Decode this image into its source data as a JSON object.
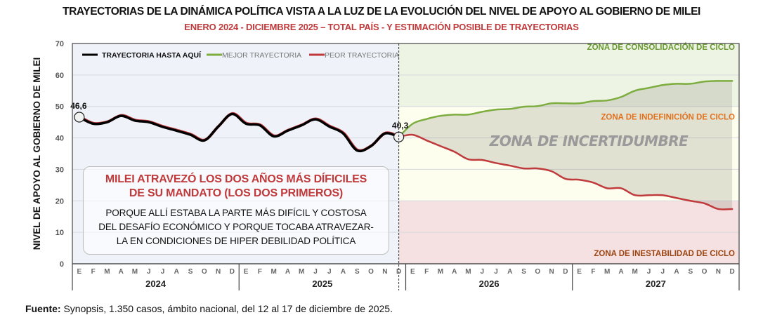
{
  "title": "TRAYECTORIAS DE LA DINÁMICA POLÍTICA VISTA A LA LUZ DE LA EVOLUCIÓN DEL NIVEL DE APOYO AL GOBIERNO DE MILEI",
  "subtitle": "ENERO 2024 - DICIEMBRE 2025 – TOTAL PAÍS - Y ESTIMACIÓN POSIBLE DE TRAYECTORIAS",
  "source": {
    "label": "Fuente:",
    "text": " Synopsis, 1.350 casos, ámbito nacional, del 12 al 17 de diciembre de 2025."
  },
  "callout": {
    "title_line1": "MILEI ATRAVEZÓ LOS DOS AÑOS MÁS DÍFICILES",
    "title_line2": "DE SU MANDATO (LOS DOS PRIMEROS)",
    "body_line1": "PORQUE ALLÍ ESTABA LA PARTE MÁS DIFÍCIL Y COSTOSA",
    "body_line2": "DEL DESAFÍO ECONÓMICO Y PORQUE TOCABA ATRAVEZAR-",
    "body_line3": "LA EN CONDICIONES DE HIPER DEBILIDAD POLÍTICA"
  },
  "chart_data": {
    "type": "line",
    "title": "TRAYECTORIAS DE LA DINÁMICA POLÍTICA VISTA A LA LUZ DE LA EVOLUCIÓN DEL NIVEL DE APOYO AL GOBIERNO DE MILEI",
    "subtitle": "ENERO 2024 - DICIEMBRE 2025 – TOTAL PAÍS - Y ESTIMACIÓN POSIBLE DE TRAYECTORIAS",
    "ylabel": "NIVEL DE APOYO AL GOBIERNO DE MILEI",
    "xlabel": "",
    "ylim": [
      0,
      70
    ],
    "yticks": [
      0,
      10,
      20,
      30,
      40,
      50,
      60,
      70
    ],
    "grid": true,
    "legend_position": "top-left",
    "month_labels": [
      "E",
      "F",
      "M",
      "A",
      "M",
      "J",
      "J",
      "A",
      "S",
      "O",
      "N",
      "D"
    ],
    "years": [
      "2024",
      "2025",
      "2026",
      "2027"
    ],
    "series": [
      {
        "name": "TRAYECTORIA HASTA AQUÍ",
        "color": "#000000",
        "start_index": 0,
        "values": [
          46.6,
          44.5,
          45.0,
          47.0,
          45.5,
          45.0,
          43.5,
          42.3,
          41.0,
          39.2,
          43.6,
          47.6,
          44.5,
          44.0,
          40.5,
          42.3,
          44.0,
          45.9,
          43.6,
          41.4,
          36.0,
          37.4,
          41.4,
          40.3
        ]
      },
      {
        "name": "MEJOR TRAYECTORIA",
        "color": "#7cad3e",
        "start_index": 23,
        "values": [
          40.3,
          44.5,
          46.0,
          47.0,
          47.4,
          47.4,
          48.3,
          49.0,
          49.2,
          49.9,
          50.1,
          51.0,
          51.0,
          51.0,
          51.7,
          51.9,
          53.0,
          55.0,
          55.9,
          56.8,
          57.2,
          57.2,
          57.9,
          58.1,
          58.1
        ]
      },
      {
        "name": "PEOR TRAYECTORIA",
        "color": "#c0393b",
        "start_index": 23,
        "values": [
          40.3,
          41.0,
          39.2,
          37.4,
          35.6,
          33.2,
          33.0,
          32.0,
          31.2,
          30.3,
          30.3,
          29.4,
          27.0,
          26.7,
          25.8,
          24.0,
          24.0,
          21.8,
          21.8,
          21.8,
          20.9,
          20.0,
          19.2,
          17.4,
          17.4
        ]
      }
    ],
    "point_labels": [
      {
        "index": 0,
        "value": 46.6,
        "text": "46,6"
      },
      {
        "index": 23,
        "value": 40.3,
        "text": "40,3"
      }
    ],
    "zones": [
      {
        "name": "ZONA DE CONSOLIDACIÓN DE CICLO",
        "from": 50,
        "to": 70,
        "color": "#eef4e4",
        "label_color": "#6a9a32"
      },
      {
        "name": "ZONA DE INDEFINICIÓN DE CICLO",
        "from": 20,
        "to": 50,
        "color": "#fefeef",
        "label_color": "#e2711d"
      },
      {
        "name": "ZONA DE INESTABILIDAD DE CICLO",
        "from": 0,
        "to": 20,
        "color": "#f5e1e1",
        "label_color": "#9c4513"
      }
    ],
    "annotation": "ZONA DE INCERTIDUMBRE",
    "divider_after_index": 23
  }
}
